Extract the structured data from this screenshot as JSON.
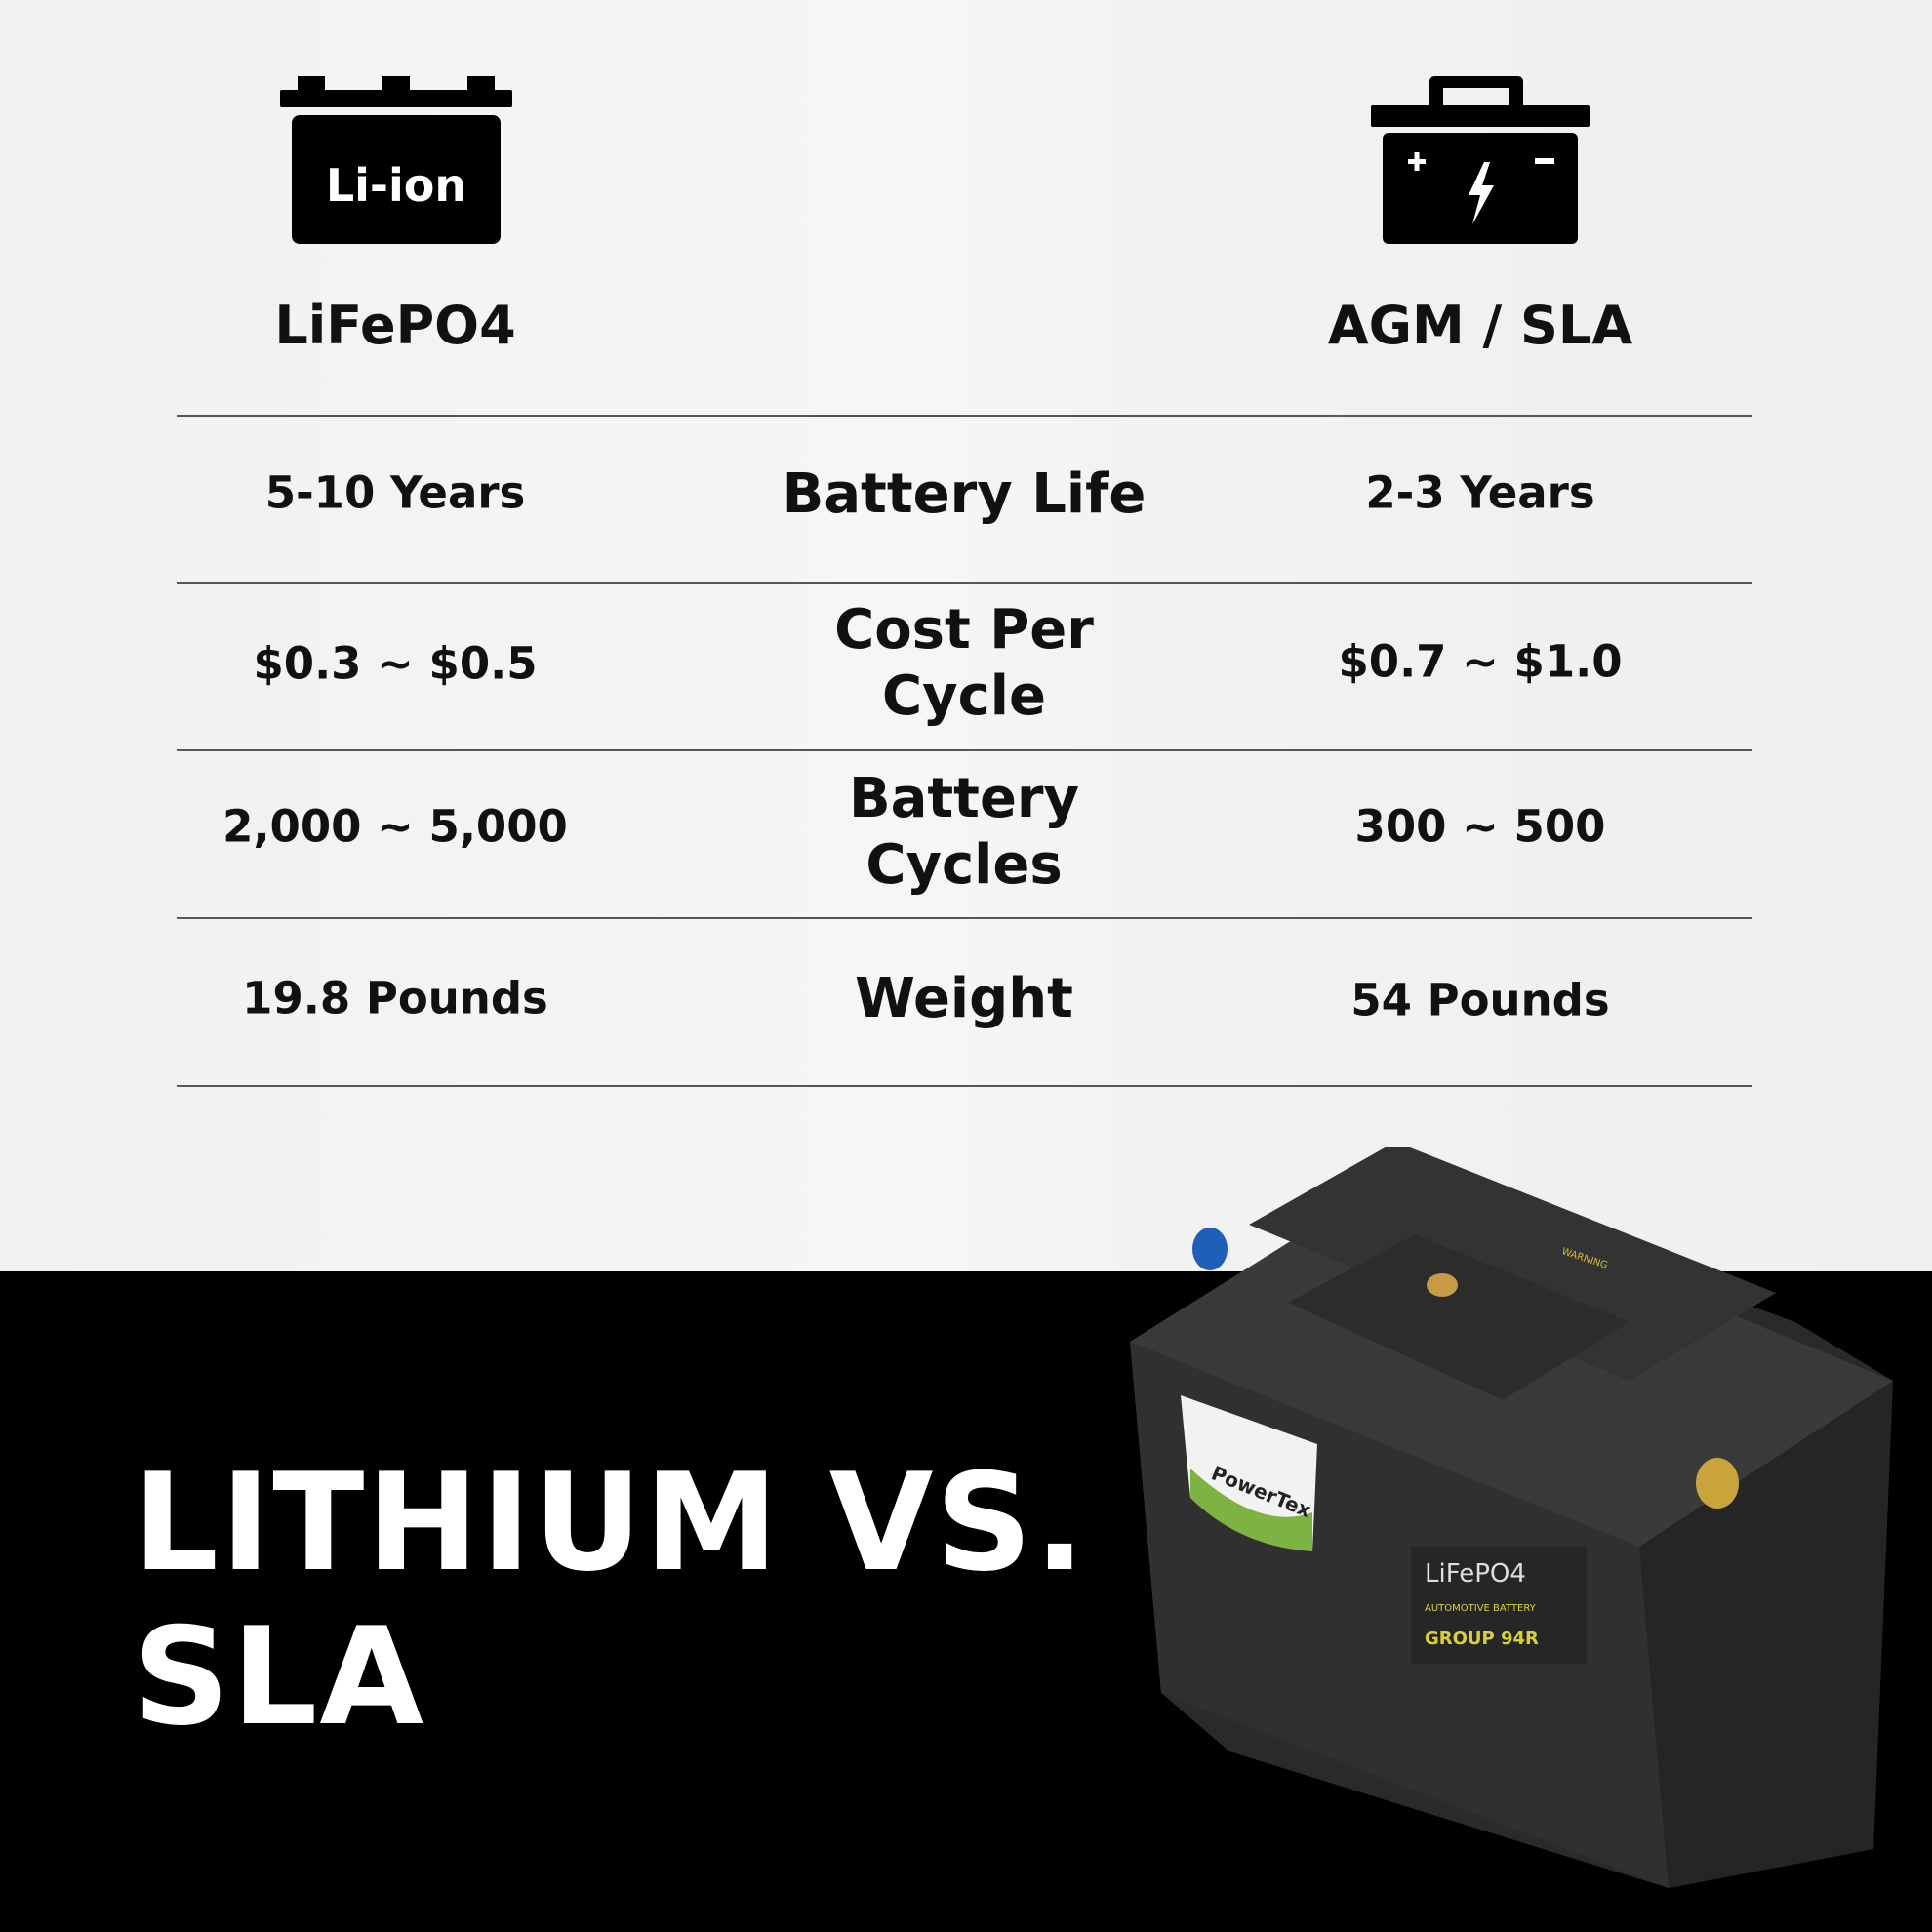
{
  "left_header": {
    "icon": "battery-li-ion-icon",
    "icon_text": "Li-ion",
    "title": "LiFePO4"
  },
  "right_header": {
    "icon": "battery-plus-minus-bolt-icon",
    "title": "AGM / SLA"
  },
  "rows": [
    {
      "label": "Battery Life",
      "lithium": "5-10 Years",
      "sla": "2-3 Years"
    },
    {
      "label_lines": [
        "Cost Per",
        "Cycle"
      ],
      "lithium": "$0.3 ~ $0.5",
      "sla": "$0.7 ~ $1.0"
    },
    {
      "label_lines": [
        "Battery",
        "Cycles"
      ],
      "lithium": "2,000 ~ 5,000",
      "sla": "300 ~ 500"
    },
    {
      "label": "Weight",
      "lithium": "19.8 Pounds",
      "sla": "54 Pounds"
    }
  ],
  "headline": {
    "line1": "LITHIUM VS.",
    "line2": "SLA"
  },
  "product": {
    "brand": "PowerTex",
    "chemistry": "LiFePO4",
    "type": "AUTOMOTIVE BATTERY",
    "group": "GROUP 94R",
    "warning": "WARNING"
  },
  "colors": {
    "background_top": "#f4f4f4",
    "background_bottom": "#000000",
    "text": "#111111",
    "accent_green": "#7cb342",
    "label_yellow": "#d8d23a"
  }
}
